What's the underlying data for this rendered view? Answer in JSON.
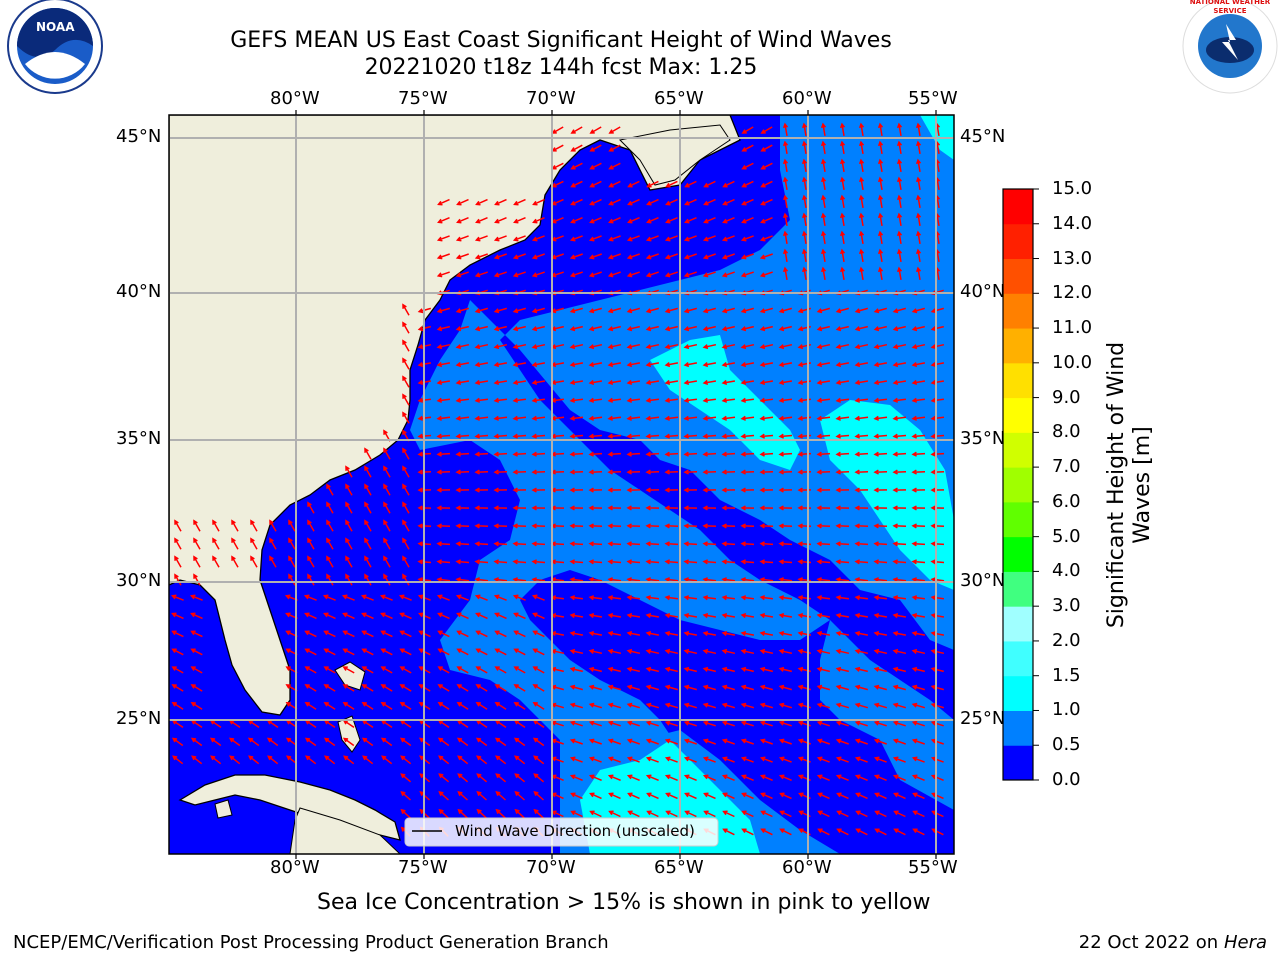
{
  "title_line1": "GEFS MEAN US East Coast Significant Height of Wind Waves",
  "title_line2": "20221020 t18z 144h fcst   Max: 1.25",
  "lon_labels": [
    "80°W",
    "75°W",
    "70°W",
    "65°W",
    "60°W",
    "55°W"
  ],
  "lat_labels": [
    "45°N",
    "40°N",
    "35°N",
    "30°N",
    "25°N"
  ],
  "legend_label": "Wind Wave Direction (unscaled)",
  "colorbar": {
    "label_line1": "Significant Height of Wind",
    "label_line2": "Waves [m]",
    "ticks": [
      "15.0",
      "14.0",
      "13.0",
      "12.0",
      "11.0",
      "10.0",
      "9.0",
      "8.0",
      "7.0",
      "6.0",
      "5.0",
      "4.0",
      "3.0",
      "2.0",
      "1.5",
      "1.0",
      "0.5",
      "0.0"
    ],
    "colors": [
      "#0000ff",
      "#0080ff",
      "#00ffff",
      "#40ffff",
      "#a0ffff",
      "#40ff80",
      "#00ff00",
      "#60ff00",
      "#a0ff00",
      "#d0ff00",
      "#ffff00",
      "#ffe000",
      "#ffb000",
      "#ff8000",
      "#ff5000",
      "#ff2000",
      "#ff0000"
    ]
  },
  "caption": "Sea Ice Concentration > 15% is shown in pink to yellow",
  "footer_left": "NCEP/EMC/Verification Post Processing Product Generation Branch",
  "footer_date": "22 Oct 2022 on",
  "footer_machine": "Hera",
  "logo_left": "NOAA",
  "logo_right": "NATIONAL WEATHER SERVICE"
}
